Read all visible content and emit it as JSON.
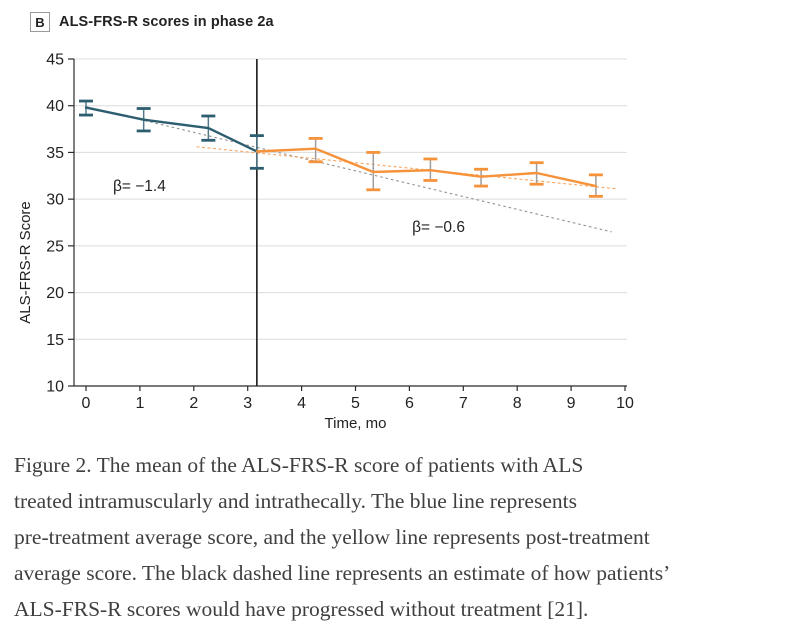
{
  "panel": {
    "label": "B",
    "title": "ALS-FRS-R scores in phase 2a"
  },
  "caption": {
    "lines": [
      "Figure 2. The mean of the ALS-FRS-R score of patients with ALS",
      "treated intramuscularly and intrathecally. The blue line represents",
      "pre-treatment average score, and the yellow line represents post-treatment",
      "average score. The black dashed line represents an estimate of how patients’",
      "ALS-FRS-R scores would have progressed without treatment [21]."
    ]
  },
  "chart_data": {
    "type": "line",
    "title": "ALS-FRS-R scores in phase 2a",
    "xlabel": "Time, mo",
    "ylabel": "ALS-FRS-R Score",
    "xlim": [
      0,
      10
    ],
    "ylim": [
      10,
      45
    ],
    "xticks": [
      0,
      1,
      2,
      3,
      4,
      5,
      6,
      7,
      8,
      9,
      10
    ],
    "yticks": [
      10,
      15,
      20,
      25,
      30,
      35,
      40,
      45
    ],
    "grid": "horizontal-only",
    "grid_color": "#dcdcdc",
    "treatment_divider_x": 3.17,
    "annotations": [
      {
        "text": "β= −1.4",
        "x": 0.5,
        "y": 31.4
      },
      {
        "text": "β= −0.6",
        "x": 6.05,
        "y": 27.0
      }
    ],
    "series": [
      {
        "name": "pre-treatment mean",
        "color": "#2d5e70",
        "errorbar_stem_color": "#56798a",
        "slope_beta": -1.4,
        "points": [
          {
            "x": 0.0,
            "y": 39.8,
            "lo": 39.0,
            "hi": 40.5
          },
          {
            "x": 1.07,
            "y": 38.5,
            "lo": 37.3,
            "hi": 39.7
          },
          {
            "x": 2.27,
            "y": 37.6,
            "lo": 36.3,
            "hi": 38.9
          },
          {
            "x": 3.17,
            "y": 35.1,
            "lo": 33.3,
            "hi": 36.8
          }
        ]
      },
      {
        "name": "post-treatment mean",
        "color": "#f5923a",
        "errorbar_stem_color": "#9e9e9e",
        "slope_beta": -0.6,
        "points": [
          {
            "x": 3.17,
            "y": 35.1
          },
          {
            "x": 4.26,
            "y": 35.4,
            "lo": 34.0,
            "hi": 36.5
          },
          {
            "x": 5.33,
            "y": 32.9,
            "lo": 31.0,
            "hi": 35.0
          },
          {
            "x": 6.39,
            "y": 33.1,
            "lo": 32.0,
            "hi": 34.3
          },
          {
            "x": 7.33,
            "y": 32.4,
            "lo": 31.4,
            "hi": 33.2
          },
          {
            "x": 8.36,
            "y": 32.8,
            "lo": 31.6,
            "hi": 33.9
          },
          {
            "x": 9.46,
            "y": 31.4,
            "lo": 30.3,
            "hi": 32.6
          }
        ]
      }
    ],
    "trend_lines": [
      {
        "name": "no-treatment-estimate",
        "color": "#8f8f8f",
        "dash": "2.5 3",
        "width": 1.1,
        "from": {
          "x": 0.0,
          "y": 39.9
        },
        "to": {
          "x": 9.75,
          "y": 26.5
        }
      },
      {
        "name": "post-treatment-fit",
        "color": "#f8a55f",
        "dash": "3 2.5",
        "width": 1.1,
        "from": {
          "x": 2.05,
          "y": 35.6
        },
        "to": {
          "x": 9.85,
          "y": 31.1
        }
      }
    ],
    "legend": "none"
  }
}
